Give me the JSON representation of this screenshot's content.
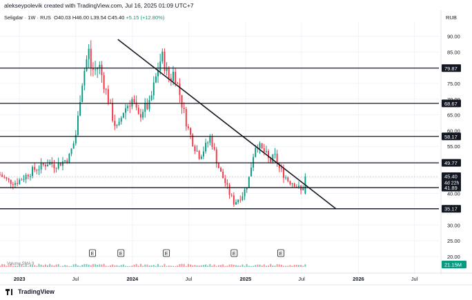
{
  "header": {
    "text": "alekseypolevik created with TradingView.com, Jul 16, 2025 01:09 UTC+7"
  },
  "legend": {
    "symbol": "Seligdar · 1W · RUS",
    "o": "O40.03",
    "h": "H46.00",
    "l": "L39.54",
    "c": "C45.40",
    "chg": "+5.15 (+12.80%)"
  },
  "currency": "RUB",
  "volume_label": "Volume SMA 9",
  "footer": {
    "brand": "TradingView"
  },
  "colors": {
    "up": "#089981",
    "down": "#f23645",
    "line": "#131722",
    "grid": "#f0f3fa"
  },
  "chart_data": {
    "type": "candlestick",
    "ylim": [
      15.6,
      94.5
    ],
    "y_ticks": [
      20,
      25,
      30,
      35,
      40,
      45,
      50,
      55,
      60,
      65,
      70,
      75,
      80,
      85,
      90
    ],
    "x_ticks": [
      {
        "label": "2023",
        "x": "2023-01-01"
      },
      {
        "label": "Jul",
        "x": "2023-07-01"
      },
      {
        "label": "2024",
        "x": "2024-01-01"
      },
      {
        "label": "Jul",
        "x": "2024-07-01"
      },
      {
        "label": "2025",
        "x": "2025-01-01"
      },
      {
        "label": "Jul",
        "x": "2025-07-01"
      },
      {
        "label": "2026",
        "x": "2026-01-01"
      },
      {
        "label": "Jul",
        "x": "2026-07-01"
      }
    ],
    "horizontal_levels": [
      "79.87",
      "68.67",
      "58.17",
      "49.77",
      "41.89",
      "35.17"
    ],
    "trendline": {
      "x1": "2023-11-15",
      "y1": 89.0,
      "x2": "2025-10-20",
      "y2": 35.2
    },
    "current_price": "45.40",
    "countdown": "4d 22h",
    "volume_value": "21.15M",
    "earnings_marker": "E",
    "earnings_dates": [
      "2023-08-25",
      "2023-11-25",
      "2024-04-20",
      "2024-11-25",
      "2025-04-25"
    ],
    "price_path": [
      [
        "2022-10-30",
        46.0
      ],
      [
        "2022-11-25",
        44.0
      ],
      [
        "2022-12-20",
        43.5
      ],
      [
        "2023-01-20",
        45.5
      ],
      [
        "2023-02-15",
        47.5
      ],
      [
        "2023-03-10",
        48.5
      ],
      [
        "2023-04-05",
        50.0
      ],
      [
        "2023-04-25",
        49.0
      ],
      [
        "2023-05-20",
        50.0
      ],
      [
        "2023-06-10",
        51.5
      ],
      [
        "2023-06-25",
        56.0
      ],
      [
        "2023-07-05",
        60.0
      ],
      [
        "2023-07-15",
        70.0
      ],
      [
        "2023-07-25",
        77.0
      ],
      [
        "2023-08-05",
        82.0
      ],
      [
        "2023-08-12",
        86.0
      ],
      [
        "2023-08-20",
        80.0
      ],
      [
        "2023-09-01",
        79.0
      ],
      [
        "2023-09-15",
        81.0
      ],
      [
        "2023-10-01",
        75.0
      ],
      [
        "2023-10-15",
        70.0
      ],
      [
        "2023-11-01",
        63.0
      ],
      [
        "2023-11-15",
        60.0
      ],
      [
        "2023-12-01",
        66.0
      ],
      [
        "2023-12-15",
        68.0
      ],
      [
        "2024-01-01",
        70.0
      ],
      [
        "2024-01-20",
        64.0
      ],
      [
        "2024-02-05",
        67.0
      ],
      [
        "2024-02-25",
        68.0
      ],
      [
        "2024-03-10",
        74.0
      ],
      [
        "2024-03-25",
        80.0
      ],
      [
        "2024-04-05",
        84.0
      ],
      [
        "2024-04-20",
        79.0
      ],
      [
        "2024-05-01",
        76.0
      ],
      [
        "2024-05-15",
        79.0
      ],
      [
        "2024-06-01",
        72.0
      ],
      [
        "2024-06-15",
        66.0
      ],
      [
        "2024-07-01",
        60.0
      ],
      [
        "2024-07-20",
        55.0
      ],
      [
        "2024-08-05",
        52.0
      ],
      [
        "2024-08-25",
        55.0
      ],
      [
        "2024-09-10",
        58.0
      ],
      [
        "2024-09-25",
        52.0
      ],
      [
        "2024-10-10",
        47.0
      ],
      [
        "2024-10-25",
        44.0
      ],
      [
        "2024-11-10",
        40.0
      ],
      [
        "2024-11-25",
        37.0
      ],
      [
        "2024-12-10",
        38.5
      ],
      [
        "2024-12-25",
        40.0
      ],
      [
        "2025-01-10",
        44.0
      ],
      [
        "2025-01-25",
        52.0
      ],
      [
        "2025-02-05",
        56.5
      ],
      [
        "2025-02-20",
        54.0
      ],
      [
        "2025-03-05",
        53.0
      ],
      [
        "2025-03-20",
        50.0
      ],
      [
        "2025-04-05",
        52.0
      ],
      [
        "2025-04-20",
        48.0
      ],
      [
        "2025-05-05",
        46.0
      ],
      [
        "2025-05-20",
        44.0
      ],
      [
        "2025-06-05",
        43.5
      ],
      [
        "2025-06-20",
        42.0
      ],
      [
        "2025-07-01",
        40.5
      ],
      [
        "2025-07-13",
        45.4
      ]
    ]
  }
}
